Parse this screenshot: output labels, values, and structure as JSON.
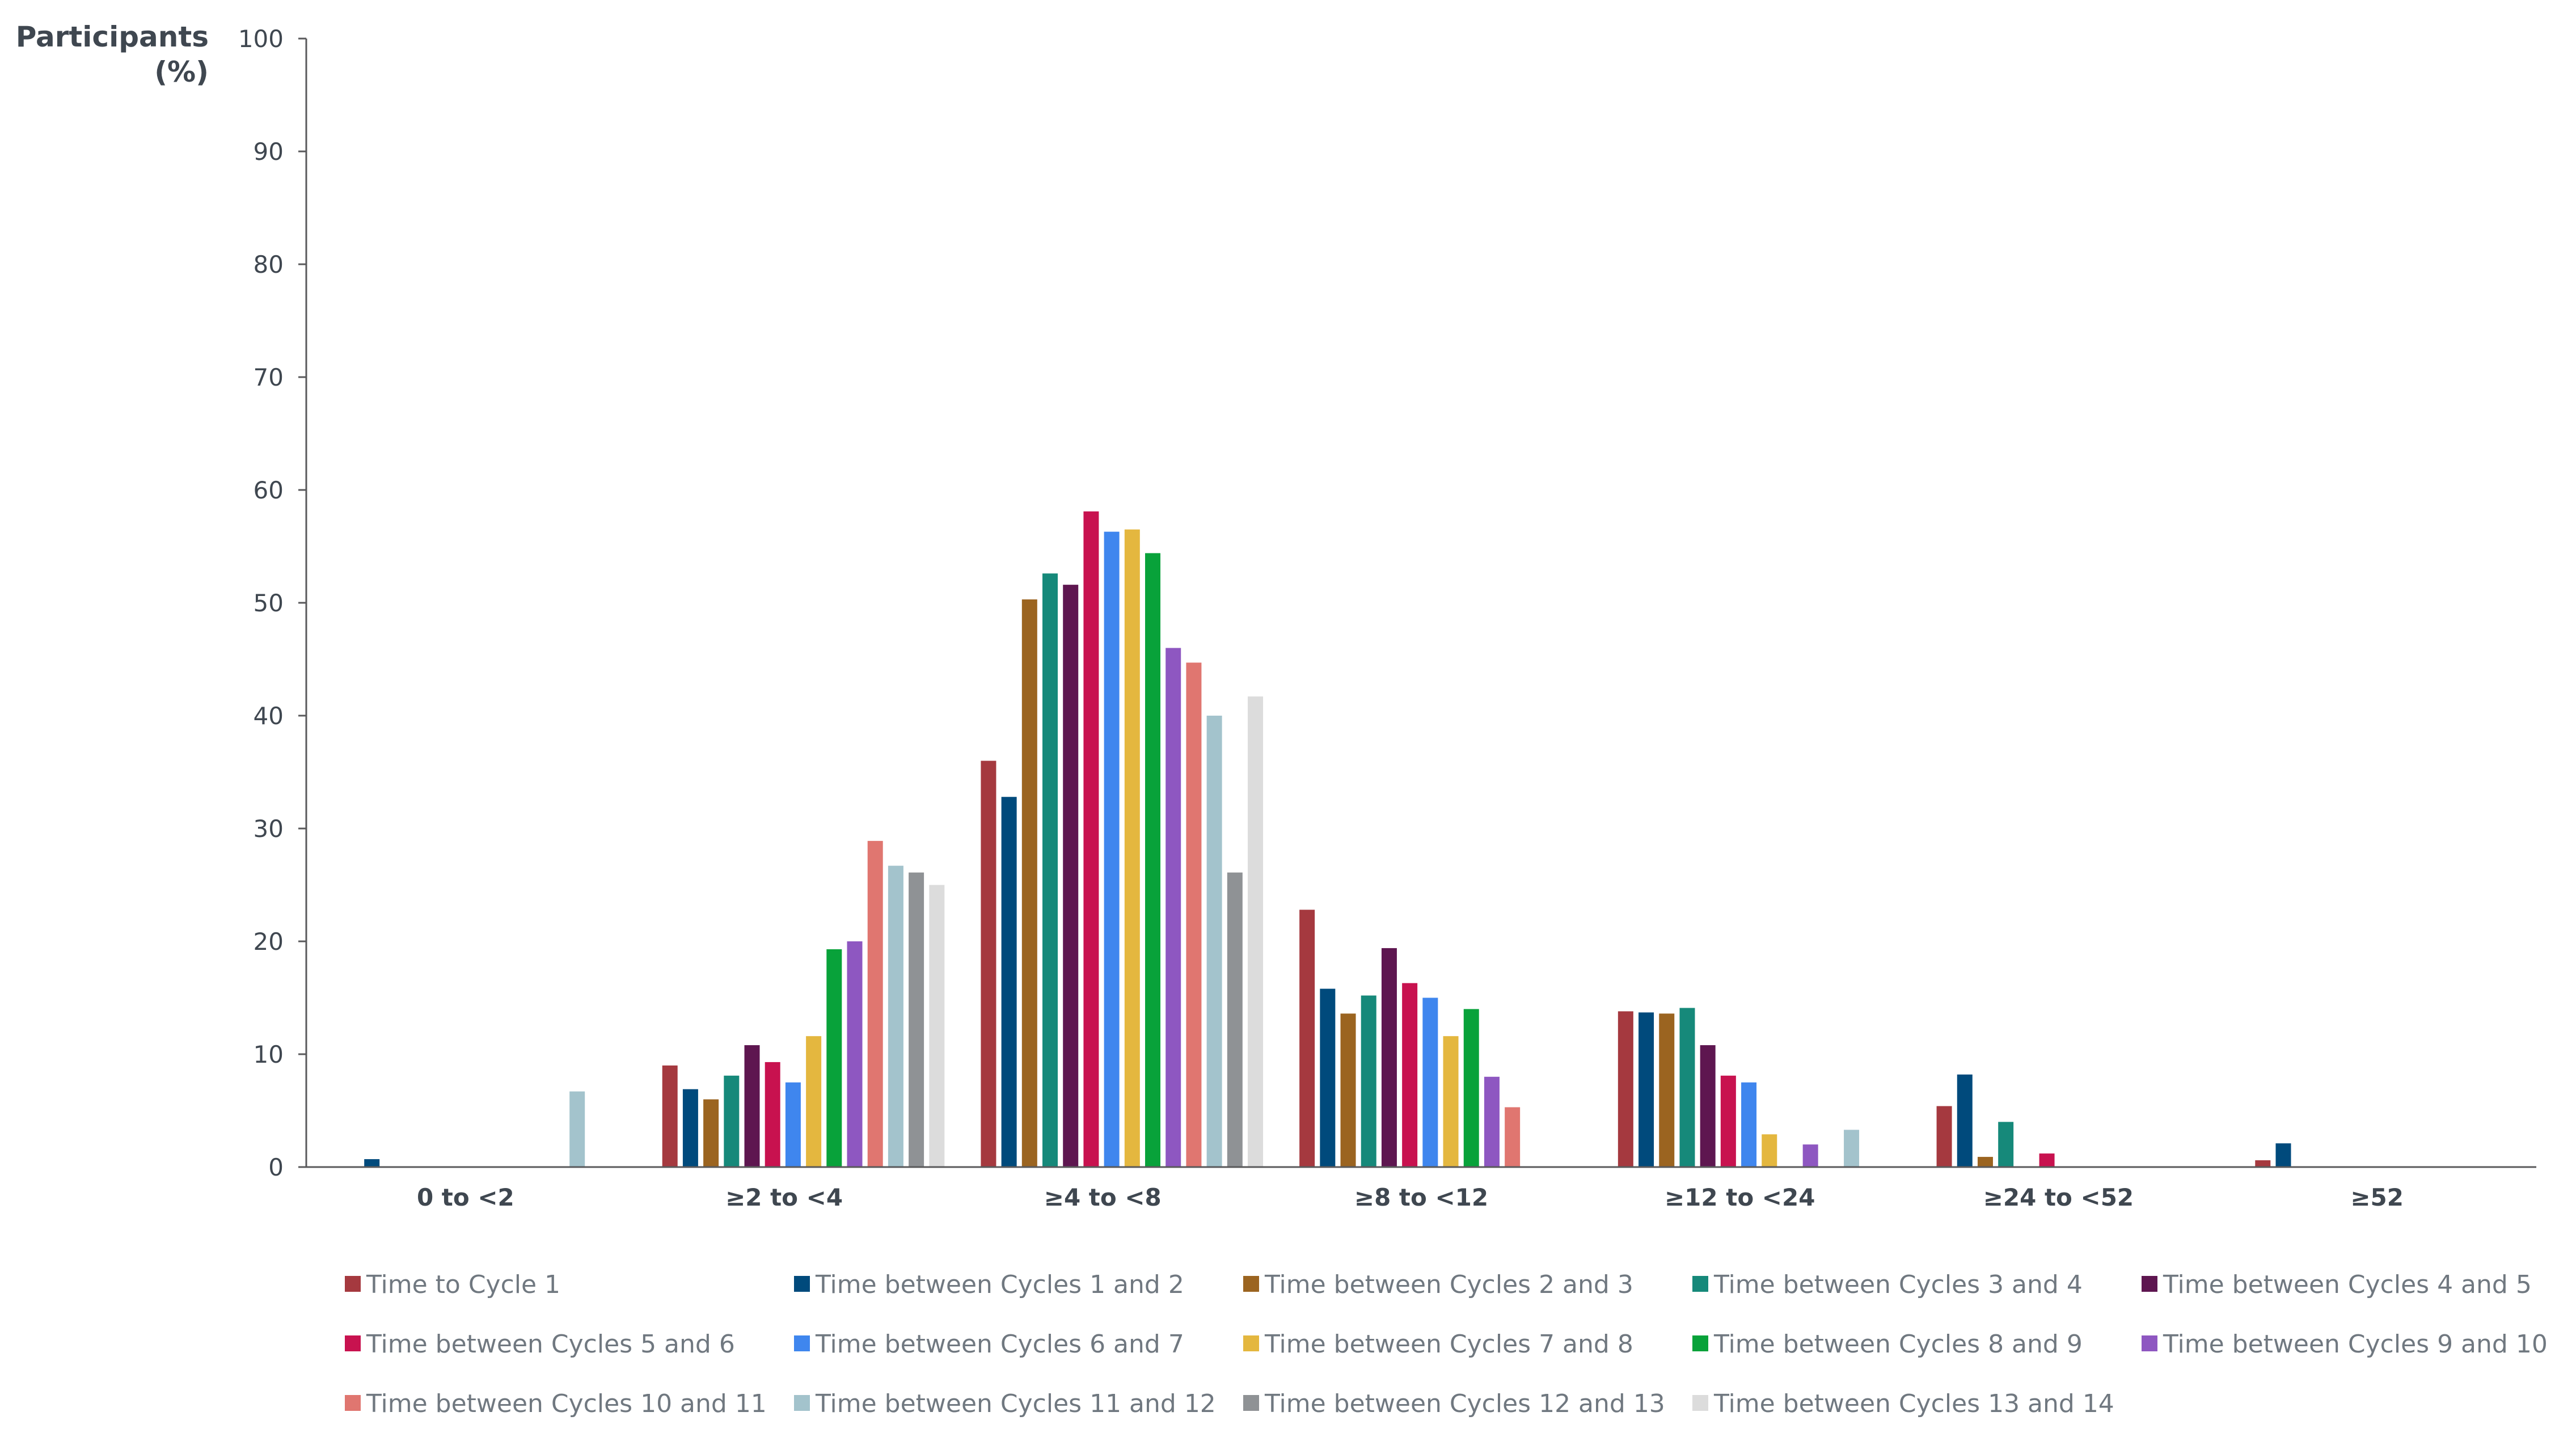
{
  "chart_data": {
    "type": "bar",
    "ylabel_line1": "Participants",
    "ylabel_line2": "(%)",
    "xlabel": "",
    "ylim": [
      0,
      100
    ],
    "yticks": [
      "0",
      "10",
      "20",
      "30",
      "40",
      "50",
      "60",
      "70",
      "80",
      "90",
      "100"
    ],
    "grid": false,
    "legend_position": "bottom",
    "categories": [
      "0 to <2",
      "≥2 to <4",
      "≥4 to <8",
      "≥8 to <12",
      "≥12 to <24",
      "≥24 to <52",
      "≥52"
    ],
    "series": [
      {
        "name": "Time to Cycle 1",
        "color": "#a5393f",
        "values": [
          0,
          9.0,
          36.0,
          22.8,
          13.8,
          5.4,
          0.6
        ]
      },
      {
        "name": "Time between Cycles 1 and 2",
        "color": "#004a7c",
        "values": [
          0.7,
          6.9,
          32.8,
          15.8,
          13.7,
          8.2,
          2.1
        ]
      },
      {
        "name": "Time between Cycles 2 and 3",
        "color": "#9b6420",
        "values": [
          0,
          6.0,
          50.3,
          13.6,
          13.6,
          0.9,
          0
        ]
      },
      {
        "name": "Time between Cycles 3 and 4",
        "color": "#16897a",
        "values": [
          0,
          8.1,
          52.6,
          15.2,
          14.1,
          4.0,
          0
        ]
      },
      {
        "name": "Time between Cycles 4 and 5",
        "color": "#5e1650",
        "values": [
          0,
          10.8,
          51.6,
          19.4,
          10.8,
          0,
          0
        ]
      },
      {
        "name": "Time between Cycles 5 and 6",
        "color": "#c8124f",
        "values": [
          0,
          9.3,
          58.1,
          16.3,
          8.1,
          1.2,
          0
        ]
      },
      {
        "name": "Time between Cycles 6 and 7",
        "color": "#3f86ee",
        "values": [
          0,
          7.5,
          56.3,
          15.0,
          7.5,
          0,
          0
        ]
      },
      {
        "name": "Time between Cycles 7 and 8",
        "color": "#e4b73f",
        "values": [
          0,
          11.6,
          56.5,
          11.6,
          2.9,
          0,
          0
        ]
      },
      {
        "name": "Time between Cycles 8 and 9",
        "color": "#08a23a",
        "values": [
          0,
          19.3,
          54.4,
          14.0,
          0,
          0,
          0
        ]
      },
      {
        "name": "Time between Cycles 9 and 10",
        "color": "#8e57c1",
        "values": [
          0,
          20.0,
          46.0,
          8.0,
          2.0,
          0,
          0
        ]
      },
      {
        "name": "Time between Cycles 10 and 11",
        "color": "#e07670",
        "values": [
          0,
          28.9,
          44.7,
          5.3,
          0,
          0,
          0
        ]
      },
      {
        "name": "Time between Cycles 11 and 12",
        "color": "#a3c3cc",
        "values": [
          6.7,
          26.7,
          40.0,
          0,
          3.3,
          0,
          0
        ]
      },
      {
        "name": "Time between Cycles 12 and 13",
        "color": "#8f9295",
        "values": [
          0,
          26.1,
          26.1,
          0,
          0,
          0,
          0
        ]
      },
      {
        "name": "Time between Cycles 13 and 14",
        "color": "#dcdcdc",
        "values": [
          0,
          25.0,
          41.7,
          0,
          0,
          0,
          0
        ]
      }
    ],
    "axis_color": "#59595b"
  }
}
